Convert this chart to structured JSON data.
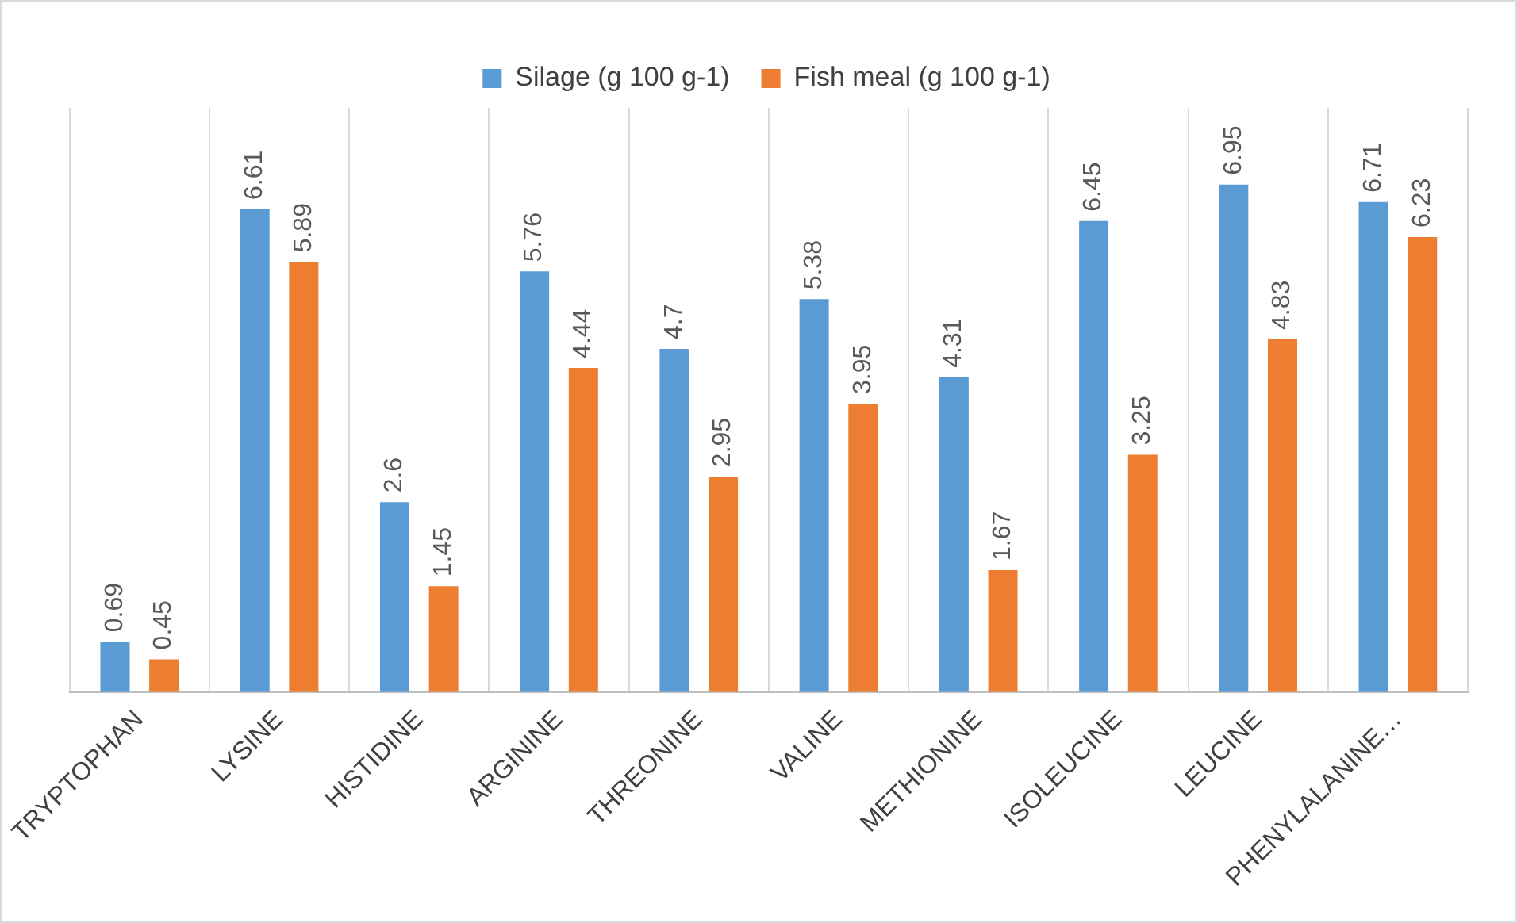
{
  "chart_data": {
    "type": "bar",
    "categories": [
      "TRYPTOPHAN",
      "LYSINE",
      "HISTIDINE",
      "ARGININE",
      "THREONINE",
      "VALINE",
      "METHIONINE",
      "ISOLEUCINE",
      "LEUCINE",
      "PHENYLALANINE…"
    ],
    "series": [
      {
        "name": "Silage (g 100 g-1)",
        "color": "#5b9bd5",
        "values": [
          0.69,
          6.61,
          2.6,
          5.76,
          4.7,
          5.38,
          4.31,
          6.45,
          6.95,
          6.71
        ]
      },
      {
        "name": "Fish meal (g 100 g-1)",
        "color": "#ed7d31",
        "values": [
          0.45,
          5.89,
          1.45,
          4.44,
          2.95,
          3.95,
          1.67,
          3.25,
          4.83,
          6.23
        ]
      }
    ],
    "data_labels": true,
    "grid": "x",
    "legend": "top"
  }
}
